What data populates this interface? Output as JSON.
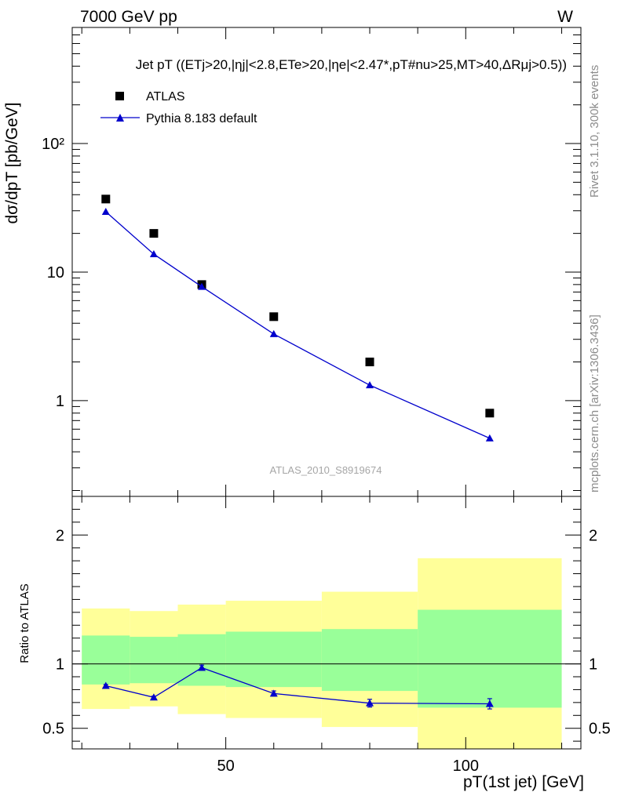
{
  "header": {
    "energy": "7000 GeV pp",
    "process": "W"
  },
  "side_text": {
    "rivet": "Rivet 3.1.10,  300k events",
    "mcplots": "mcplots.cern.ch [arXiv:1306.3436]"
  },
  "watermark": "ATLAS_2010_S8919674",
  "colors": {
    "mc": "#0000cc",
    "data": "#000000",
    "band_inner": "#99ff99",
    "band_outer": "#ffff99"
  },
  "chart_data": [
    {
      "type": "scatter",
      "panel": "main",
      "title": "Jet pT ((ETj>20,|ηj|<2.8,ETe>20,|ηe|<2.47*,pT#nu>25,MT>40,ΔRμj>0.5))",
      "ylabel": "dσ/dpT [pb/GeV]",
      "xlim": [
        18,
        124
      ],
      "ylim": [
        0.18,
        800
      ],
      "yscale": "log",
      "yticks": [
        "1",
        "10",
        "10²"
      ],
      "legend_placement": "top-left",
      "series": [
        {
          "name": "ATLAS",
          "marker": "square",
          "x": [
            25,
            35,
            45,
            60,
            80,
            105
          ],
          "y": [
            37,
            20,
            8.0,
            4.5,
            2.0,
            0.8
          ]
        },
        {
          "name": "Pythia 8.183 default",
          "marker": "triangle",
          "x": [
            25,
            35,
            45,
            60,
            80,
            105
          ],
          "y": [
            29.5,
            13.8,
            7.7,
            3.3,
            1.32,
            0.51
          ]
        }
      ]
    },
    {
      "type": "line",
      "panel": "ratio",
      "ylabel": "Ratio to ATLAS",
      "xlabel": "pT(1st jet) [GeV]",
      "xlim": [
        18,
        124
      ],
      "ylim": [
        0.34,
        2.3
      ],
      "xticks": [
        "50",
        "100"
      ],
      "yticks": [
        "0.5",
        "1",
        "2"
      ],
      "reference_line": 1,
      "bands": [
        {
          "x_low": [
            20,
            30,
            40,
            50,
            70,
            90
          ],
          "x_high": [
            30,
            40,
            50,
            70,
            90,
            120
          ],
          "inner_low": [
            0.84,
            0.85,
            0.83,
            0.82,
            0.79,
            0.66
          ],
          "inner_high": [
            1.22,
            1.21,
            1.23,
            1.25,
            1.27,
            1.42
          ],
          "outer_low": [
            0.65,
            0.67,
            0.61,
            0.58,
            0.51,
            0.34
          ],
          "outer_high": [
            1.43,
            1.41,
            1.46,
            1.49,
            1.56,
            1.82
          ]
        }
      ],
      "series": [
        {
          "name": "Pythia 8.183 default",
          "x": [
            25,
            35,
            45,
            60,
            80,
            105
          ],
          "y": [
            0.83,
            0.74,
            0.97,
            0.77,
            0.695,
            0.69
          ],
          "err": [
            0.01,
            0.01,
            0.02,
            0.02,
            0.03,
            0.04
          ]
        }
      ]
    }
  ]
}
